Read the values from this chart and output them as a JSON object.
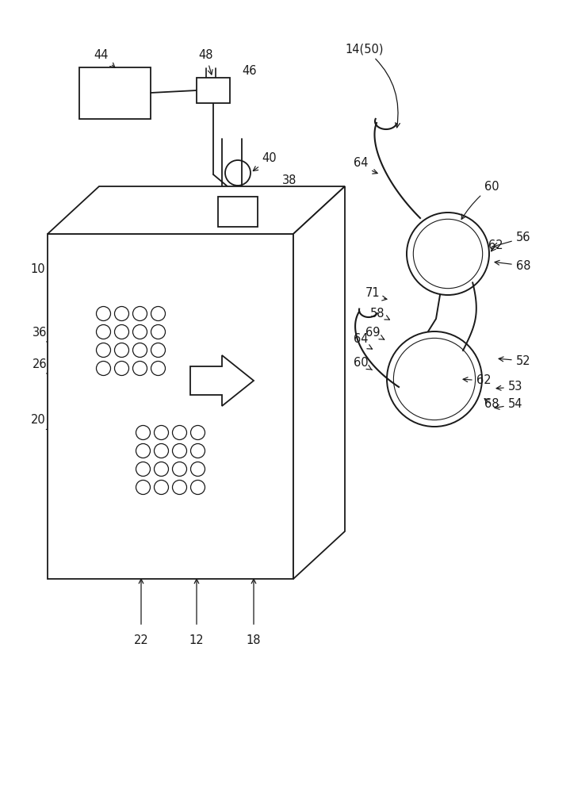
{
  "bg_color": "#ffffff",
  "line_color": "#1a1a1a",
  "font_size": 10,
  "fig_width": 7.19,
  "fig_height": 10.0
}
